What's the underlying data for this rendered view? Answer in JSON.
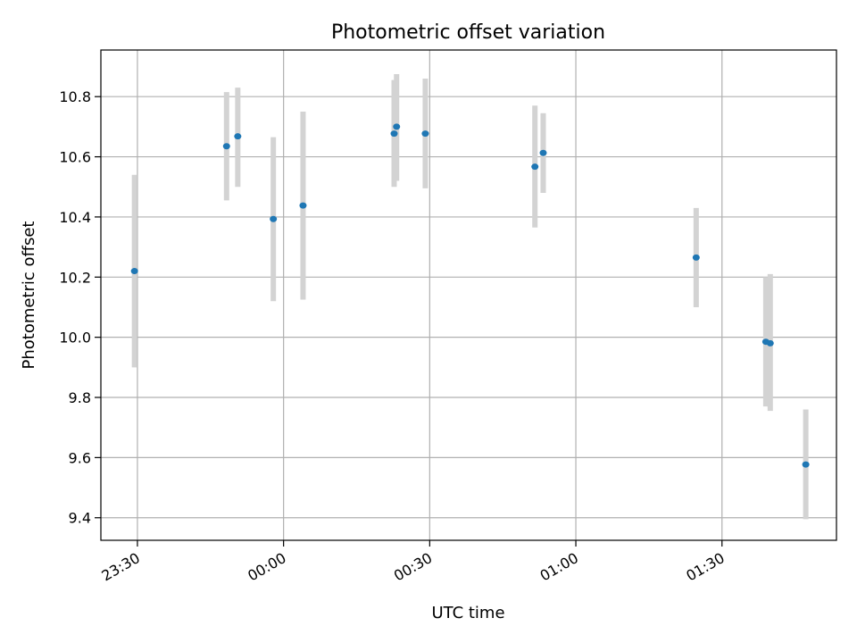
{
  "chart_data": {
    "type": "scatter",
    "title": "Photometric offset variation",
    "xlabel": "UTC time",
    "ylabel": "Photometric offset",
    "x_unit": "minutes relative to 00:00 UTC",
    "xlim": [
      -37.5,
      113.5
    ],
    "ylim": [
      9.325,
      10.955
    ],
    "x_ticks": [
      {
        "value": -30,
        "label": "23:30"
      },
      {
        "value": 0,
        "label": "00:00"
      },
      {
        "value": 30,
        "label": "00:30"
      },
      {
        "value": 60,
        "label": "01:00"
      },
      {
        "value": 90,
        "label": "01:30"
      }
    ],
    "y_ticks": [
      {
        "value": 9.4,
        "label": "9.4"
      },
      {
        "value": 9.6,
        "label": "9.6"
      },
      {
        "value": 9.8,
        "label": "9.8"
      },
      {
        "value": 10.0,
        "label": "10.0"
      },
      {
        "value": 10.2,
        "label": "10.2"
      },
      {
        "value": 10.4,
        "label": "10.4"
      },
      {
        "value": 10.6,
        "label": "10.6"
      },
      {
        "value": 10.8,
        "label": "10.8"
      }
    ],
    "grid": true,
    "point_color": "#1f77b4",
    "errorbar_color": "#d3d3d3",
    "points": [
      {
        "x": -30.6,
        "y": 10.22,
        "low": 9.9,
        "high": 10.54
      },
      {
        "x": -11.7,
        "y": 10.635,
        "low": 10.455,
        "high": 10.815
      },
      {
        "x": -9.4,
        "y": 10.668,
        "low": 10.5,
        "high": 10.83
      },
      {
        "x": -2.1,
        "y": 10.393,
        "low": 10.12,
        "high": 10.665
      },
      {
        "x": 4.0,
        "y": 10.438,
        "low": 10.125,
        "high": 10.75
      },
      {
        "x": 22.7,
        "y": 10.677,
        "low": 10.5,
        "high": 10.855
      },
      {
        "x": 23.2,
        "y": 10.7,
        "low": 10.52,
        "high": 10.875
      },
      {
        "x": 29.1,
        "y": 10.677,
        "low": 10.495,
        "high": 10.86
      },
      {
        "x": 51.6,
        "y": 10.567,
        "low": 10.365,
        "high": 10.77
      },
      {
        "x": 53.3,
        "y": 10.613,
        "low": 10.48,
        "high": 10.745
      },
      {
        "x": 84.7,
        "y": 10.265,
        "low": 10.1,
        "high": 10.43
      },
      {
        "x": 99.0,
        "y": 9.985,
        "low": 9.77,
        "high": 10.2
      },
      {
        "x": 99.9,
        "y": 9.98,
        "low": 9.755,
        "high": 10.21
      },
      {
        "x": 107.2,
        "y": 9.577,
        "low": 9.395,
        "high": 9.76
      }
    ]
  }
}
